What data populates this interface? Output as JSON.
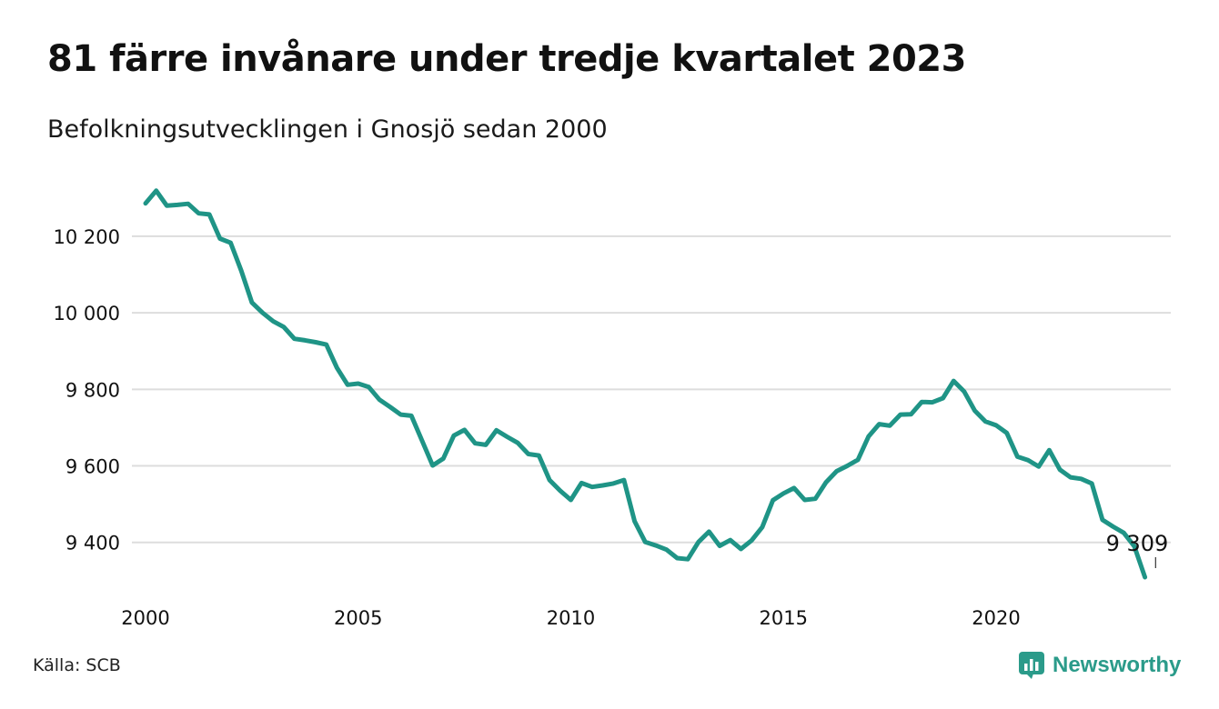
{
  "title": "81 färre invånare under tredje kvartalet 2023",
  "subtitle": "Befolkningsutvecklingen i Gnosjö sedan 2000",
  "source": "Källa: SCB",
  "brand": {
    "name": "Newsworthy",
    "icon": "newsworthy-logo-icon",
    "color": "#2b9b8a"
  },
  "colors": {
    "line": "#1f9486",
    "grid": "#dddddd",
    "text": "#111111"
  },
  "chart_data": {
    "type": "line",
    "title": "81 färre invånare under tredje kvartalet 2023",
    "subtitle": "Befolkningsutvecklingen i Gnosjö sedan 2000",
    "xlabel": "",
    "ylabel": "",
    "xlim": [
      2000,
      2024
    ],
    "ylim": [
      9290,
      10340
    ],
    "x_ticks": [
      2000,
      2005,
      2010,
      2015,
      2020
    ],
    "x_tick_labels": [
      "2000",
      "2005",
      "2010",
      "2015",
      "2020"
    ],
    "y_ticks": [
      9400,
      9600,
      9800,
      10000,
      10200
    ],
    "y_tick_labels": [
      "9 400",
      "9 600",
      "9 800",
      "10 000",
      "10 200"
    ],
    "grid": true,
    "legend": "none",
    "annotation": {
      "label": "9 309",
      "x": 2023.75,
      "y": 9309
    },
    "series": [
      {
        "values": [
          [
            2000.0,
            10286
          ],
          [
            2000.25,
            10319
          ],
          [
            2000.5,
            10280
          ],
          [
            2000.75,
            10282
          ],
          [
            2001.0,
            10285
          ],
          [
            2001.25,
            10260
          ],
          [
            2001.5,
            10257
          ],
          [
            2001.75,
            10194
          ],
          [
            2002.0,
            10183
          ],
          [
            2002.25,
            10110
          ],
          [
            2002.5,
            10027
          ],
          [
            2002.75,
            10000
          ],
          [
            2003.0,
            9978
          ],
          [
            2003.25,
            9963
          ],
          [
            2003.5,
            9932
          ],
          [
            2003.75,
            9928
          ],
          [
            2004.0,
            9923
          ],
          [
            2004.25,
            9917
          ],
          [
            2004.5,
            9856
          ],
          [
            2004.75,
            9812
          ],
          [
            2005.0,
            9815
          ],
          [
            2005.25,
            9806
          ],
          [
            2005.5,
            9773
          ],
          [
            2005.75,
            9754
          ],
          [
            2006.0,
            9734
          ],
          [
            2006.25,
            9731
          ],
          [
            2006.5,
            9666
          ],
          [
            2006.75,
            9601
          ],
          [
            2007.0,
            9619
          ],
          [
            2007.25,
            9679
          ],
          [
            2007.5,
            9694
          ],
          [
            2007.75,
            9659
          ],
          [
            2008.0,
            9655
          ],
          [
            2008.25,
            9693
          ],
          [
            2008.5,
            9676
          ],
          [
            2008.75,
            9660
          ],
          [
            2009.0,
            9631
          ],
          [
            2009.25,
            9627
          ],
          [
            2009.5,
            9563
          ],
          [
            2009.75,
            9535
          ],
          [
            2010.0,
            9511
          ],
          [
            2010.25,
            9555
          ],
          [
            2010.5,
            9545
          ],
          [
            2010.75,
            9549
          ],
          [
            2011.0,
            9554
          ],
          [
            2011.25,
            9563
          ],
          [
            2011.5,
            9455
          ],
          [
            2011.75,
            9401
          ],
          [
            2012.0,
            9392
          ],
          [
            2012.25,
            9381
          ],
          [
            2012.5,
            9359
          ],
          [
            2012.75,
            9356
          ],
          [
            2013.0,
            9401
          ],
          [
            2013.25,
            9428
          ],
          [
            2013.5,
            9391
          ],
          [
            2013.75,
            9406
          ],
          [
            2014.0,
            9383
          ],
          [
            2014.25,
            9405
          ],
          [
            2014.5,
            9440
          ],
          [
            2014.75,
            9510
          ],
          [
            2015.0,
            9528
          ],
          [
            2015.25,
            9542
          ],
          [
            2015.5,
            9511
          ],
          [
            2015.75,
            9514
          ],
          [
            2016.0,
            9557
          ],
          [
            2016.25,
            9586
          ],
          [
            2016.5,
            9600
          ],
          [
            2016.75,
            9616
          ],
          [
            2017.0,
            9677
          ],
          [
            2017.25,
            9709
          ],
          [
            2017.5,
            9705
          ],
          [
            2017.75,
            9734
          ],
          [
            2018.0,
            9735
          ],
          [
            2018.25,
            9767
          ],
          [
            2018.5,
            9766
          ],
          [
            2018.75,
            9777
          ],
          [
            2019.0,
            9822
          ],
          [
            2019.25,
            9794
          ],
          [
            2019.5,
            9744
          ],
          [
            2019.75,
            9716
          ],
          [
            2020.0,
            9706
          ],
          [
            2020.25,
            9686
          ],
          [
            2020.5,
            9624
          ],
          [
            2020.75,
            9615
          ],
          [
            2021.0,
            9598
          ],
          [
            2021.25,
            9641
          ],
          [
            2021.5,
            9590
          ],
          [
            2021.75,
            9570
          ],
          [
            2022.0,
            9566
          ],
          [
            2022.25,
            9554
          ],
          [
            2022.5,
            9459
          ],
          [
            2022.75,
            9441
          ],
          [
            2023.0,
            9425
          ],
          [
            2023.25,
            9390
          ],
          [
            2023.5,
            9309
          ]
        ]
      }
    ]
  }
}
